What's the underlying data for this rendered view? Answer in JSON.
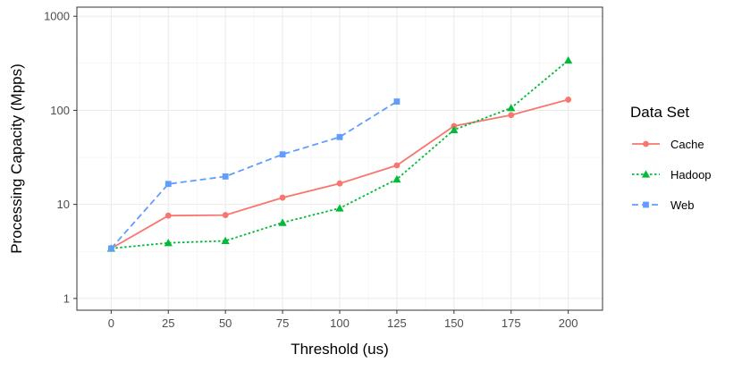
{
  "chart_data": {
    "type": "line",
    "xlabel": "Threshold (us)",
    "ylabel": "Processing Capacity (Mpps)",
    "x_scale": "linear",
    "y_scale": "log",
    "xlim": [
      -15,
      215
    ],
    "ylim": [
      0.75,
      1250
    ],
    "x_ticks": [
      0,
      25,
      50,
      75,
      100,
      125,
      150,
      175,
      200
    ],
    "x_tick_labels": [
      "0",
      "25",
      "50",
      "75",
      "100",
      "125",
      "150",
      "175",
      "200"
    ],
    "y_ticks": [
      1,
      10,
      100,
      1000
    ],
    "y_tick_labels": [
      "1",
      "10",
      "100",
      "1000"
    ],
    "grid": true,
    "legend": {
      "title": "Data Set",
      "position": "right"
    },
    "series": [
      {
        "name": "Cache",
        "color": "#F8766D",
        "marker": "circle",
        "line_style": "solid",
        "x": [
          0,
          25,
          50,
          75,
          100,
          125,
          150,
          175,
          200
        ],
        "values": [
          3.4,
          7.6,
          7.7,
          11.8,
          16.7,
          26,
          68,
          89,
          130
        ]
      },
      {
        "name": "Hadoop",
        "color": "#00BA38",
        "marker": "triangle",
        "line_style": "dotted",
        "x": [
          0,
          25,
          50,
          75,
          100,
          125,
          150,
          175,
          200
        ],
        "values": [
          3.4,
          3.9,
          4.1,
          6.4,
          9.1,
          18.5,
          62,
          106,
          340
        ]
      },
      {
        "name": "Web",
        "color": "#619CFF",
        "marker": "square",
        "line_style": "dashed",
        "x": [
          0,
          25,
          50,
          75,
          100,
          125
        ],
        "values": [
          3.4,
          16.5,
          19.8,
          34,
          52,
          124
        ]
      }
    ]
  }
}
